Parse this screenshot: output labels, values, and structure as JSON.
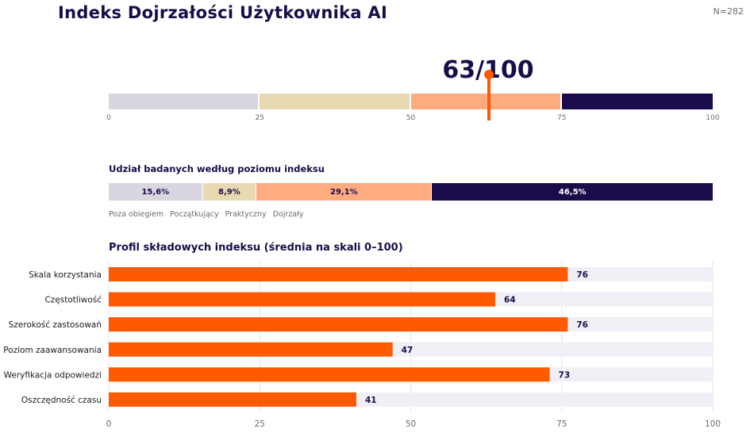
{
  "title": "Indeks Dojrzałości Użytkownika AI",
  "n_label": "N=282",
  "colors": {
    "navy": "#1a0c4a",
    "orange": "#ff5a00",
    "track": "#f1eff6",
    "gray": "#6b6b6b"
  },
  "chart_data": [
    {
      "type": "bar",
      "subtype": "gauge",
      "score_label": "63/100",
      "value": 63,
      "xlim": [
        0,
        100
      ],
      "ticks": [
        0,
        25,
        50,
        75,
        100
      ],
      "bands": [
        {
          "from": 0,
          "to": 25,
          "color": "#d9d6df"
        },
        {
          "from": 25,
          "to": 50,
          "color": "#e8d9b2"
        },
        {
          "from": 50,
          "to": 75,
          "color": "#ffab80"
        },
        {
          "from": 75,
          "to": 100,
          "color": "#1a0c4a"
        }
      ]
    },
    {
      "type": "bar",
      "subtype": "stacked-100",
      "title": "Udział badanych według poziomu indeksu",
      "segments": [
        {
          "name": "Poza obiegiem",
          "value": 15.6,
          "label": "15,6%",
          "color": "#d9d6df"
        },
        {
          "name": "Początkujący",
          "value": 8.9,
          "label": "8,9%",
          "color": "#e8d9b2"
        },
        {
          "name": "Praktyczny",
          "value": 29.1,
          "label": "29,1%",
          "color": "#ffab80"
        },
        {
          "name": "Dojrzały",
          "value": 46.5,
          "label": "46,5%",
          "color": "#1a0c4a"
        }
      ]
    },
    {
      "type": "bar",
      "orientation": "horizontal",
      "title": "Profil składowych indeksu (średnia na skali 0–100)",
      "categories": [
        "Skala korzystania",
        "Częstotliwość",
        "Szerokość zastosowań",
        "Poziom zaawansowania",
        "Weryfikacja odpowiedzi",
        "Oszczędność czasu"
      ],
      "values": [
        76,
        64,
        76,
        47,
        73,
        41
      ],
      "xlim": [
        0,
        100
      ],
      "ticks": [
        0,
        25,
        50,
        75,
        100
      ],
      "grid": true
    }
  ]
}
